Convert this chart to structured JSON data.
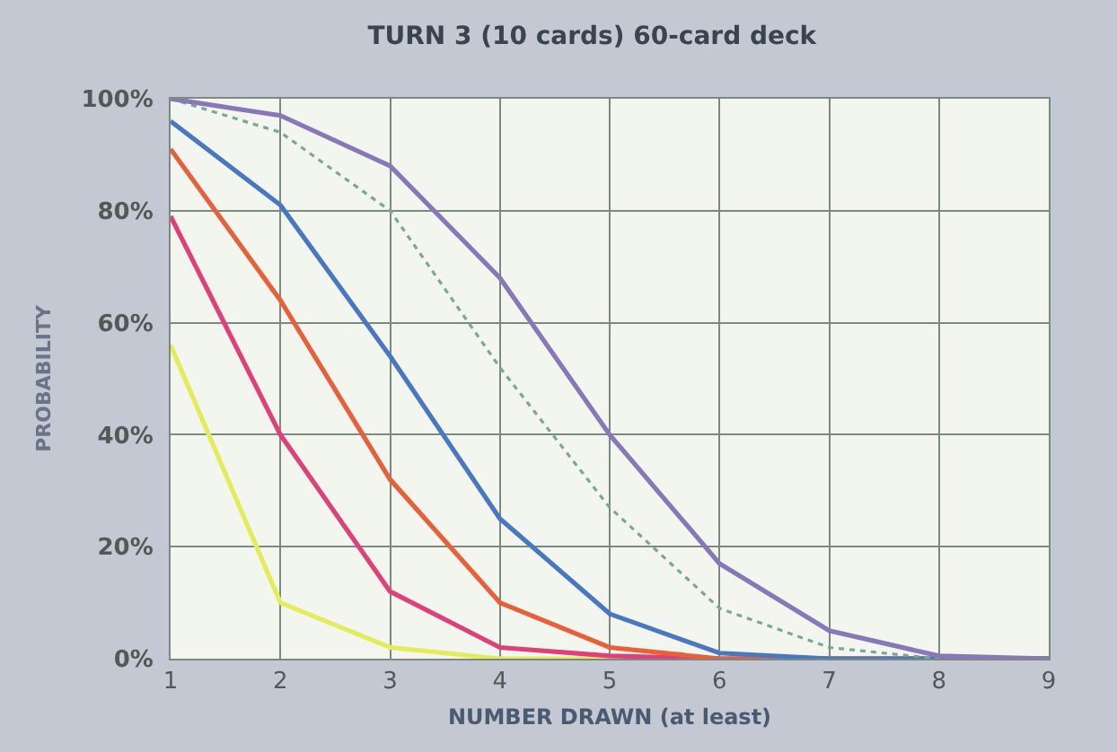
{
  "chart_data": {
    "type": "line",
    "title": "TURN 3 (10 cards) 60-card deck",
    "xlabel": "NUMBER DRAWN (at least)",
    "ylabel": "PROBABILITY",
    "x": [
      1,
      2,
      3,
      4,
      5,
      6,
      7,
      8,
      9
    ],
    "series": [
      {
        "color": "#e4ec5c",
        "values": [
          56,
          10,
          2,
          0,
          0,
          0,
          null,
          null,
          null
        ]
      },
      {
        "color": "#e0407a",
        "values": [
          79,
          40,
          12,
          2,
          0.5,
          0,
          0,
          0,
          0
        ]
      },
      {
        "color": "#e8603a",
        "values": [
          91,
          64,
          32,
          10,
          2,
          0,
          0,
          0,
          0
        ]
      },
      {
        "color": "#4a78c0",
        "values": [
          96,
          81,
          54,
          25,
          8,
          1,
          0,
          0,
          0
        ]
      },
      {
        "color": "#7aa898",
        "line_style": "dotted",
        "values": [
          100,
          94,
          80,
          52,
          27,
          9,
          2,
          0,
          0
        ]
      },
      {
        "color": "#8878b8",
        "values": [
          100,
          97,
          88,
          68,
          40,
          17,
          5,
          0.5,
          0
        ]
      }
    ],
    "xlim": [
      1,
      9
    ],
    "xticks": [
      1,
      2,
      3,
      4,
      5,
      6,
      7,
      8,
      9
    ],
    "ylim": [
      0,
      100
    ],
    "yticks": [
      {
        "value": 0,
        "label": "0%"
      },
      {
        "value": 20,
        "label": "20%"
      },
      {
        "value": 40,
        "label": "40%"
      },
      {
        "value": 60,
        "label": "60%"
      },
      {
        "value": 80,
        "label": "80%"
      },
      {
        "value": 100,
        "label": "100%"
      }
    ],
    "grid": true,
    "marker": "none",
    "line_style": "solid"
  }
}
